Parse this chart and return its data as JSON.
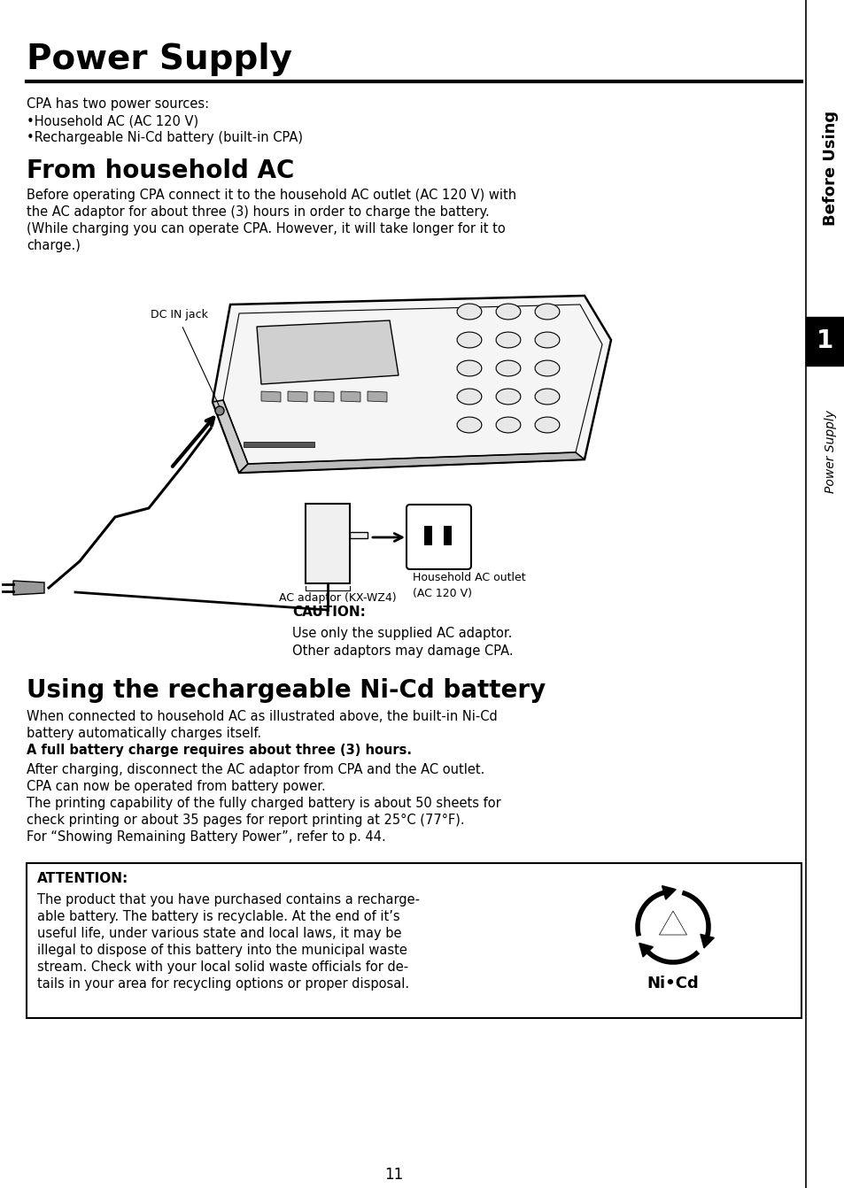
{
  "title": "Power Supply",
  "bg_color": "#ffffff",
  "page_number": "11",
  "sidebar_top_text": "Before Using",
  "sidebar_number": "1",
  "sidebar_bottom_text": "Power Supply",
  "intro_lines": [
    "CPA has two power sources:",
    "•Household AC (AC 120 V)",
    "•Rechargeable Ni-Cd battery (built-in CPA)"
  ],
  "section1_title": "From household AC",
  "section1_body": [
    "Before operating CPA connect it to the household AC outlet (AC 120 V) with",
    "the AC adaptor for about three (3) hours in order to charge the battery.",
    "(While charging you can operate CPA. However, it will take longer for it to",
    "charge.)"
  ],
  "section2_title": "Using the rechargeable Ni-Cd battery",
  "section2_body": [
    "When connected to household AC as illustrated above, the built-in Ni-Cd",
    "battery automatically charges itself."
  ],
  "section2_bold": "A full battery charge requires about three (3) hours.",
  "section2_body2": [
    "After charging, disconnect the AC adaptor from CPA and the AC outlet.",
    "CPA can now be operated from battery power.",
    "The printing capability of the fully charged battery is about 50 sheets for",
    "check printing or about 35 pages for report printing at 25°C (77°F).",
    "For “Showing Remaining Battery Power”, refer to p. 44."
  ],
  "caution_label": "CAUTION:",
  "caution_lines": [
    "Use only the supplied AC adaptor.",
    "Other adaptors may damage CPA."
  ],
  "attention_label": "ATTENTION:",
  "attention_body": [
    "The product that you have purchased contains a recharge-",
    "able battery. The battery is recyclable. At the end of it’s",
    "useful life, under various state and local laws, it may be",
    "illegal to dispose of this battery into the municipal waste",
    "stream. Check with your local solid waste officials for de-",
    "tails in your area for recycling options or proper disposal."
  ],
  "attention_nicd": "Ni•Cd",
  "dc_in_label": "DC IN jack",
  "ac_adaptor_label": "AC adaptor (KX-WZ4)",
  "household_ac_label": "Household AC outlet\n(AC 120 V)"
}
